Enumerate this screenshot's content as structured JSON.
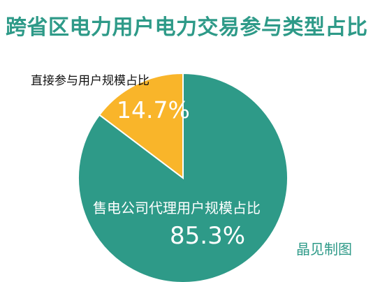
{
  "chart_data": {
    "type": "pie",
    "title": "跨省区电力用户电力交易参与类型占比",
    "slices": [
      {
        "label": "售电公司代理用户规模占比",
        "value": 85.3,
        "value_label": "85.3%",
        "color": "#2e9a88"
      },
      {
        "label": "直接参与用户规模占比",
        "value": 14.7,
        "value_label": "14.7%",
        "color": "#f9b52a"
      }
    ],
    "start": "12 o'clock",
    "direction": "clockwise",
    "legend": "none"
  },
  "watermark": "晶见制图",
  "colors": {
    "title": "#2e9a88",
    "watermark": "#2e9a88",
    "slice_stroke": "#ffffff"
  }
}
